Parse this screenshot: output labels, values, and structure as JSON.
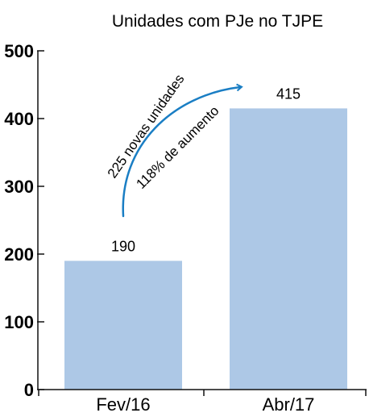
{
  "chart_data": {
    "type": "bar",
    "title": "Unidades com PJe no TJPE",
    "categories": [
      "Fev/16",
      "Abr/17"
    ],
    "values": [
      190,
      415
    ],
    "value_labels": [
      "190",
      "415"
    ],
    "xlabel": "",
    "ylabel": "",
    "ylim": [
      0,
      500
    ],
    "yticks": [
      "0",
      "100",
      "200",
      "300",
      "400",
      "500"
    ],
    "grid": false,
    "bar_color": "#adc8e6",
    "annotation": {
      "line1": "225 novas unidades",
      "line2": "118% de aumento",
      "arrow_color": "#1a7ec4"
    }
  }
}
